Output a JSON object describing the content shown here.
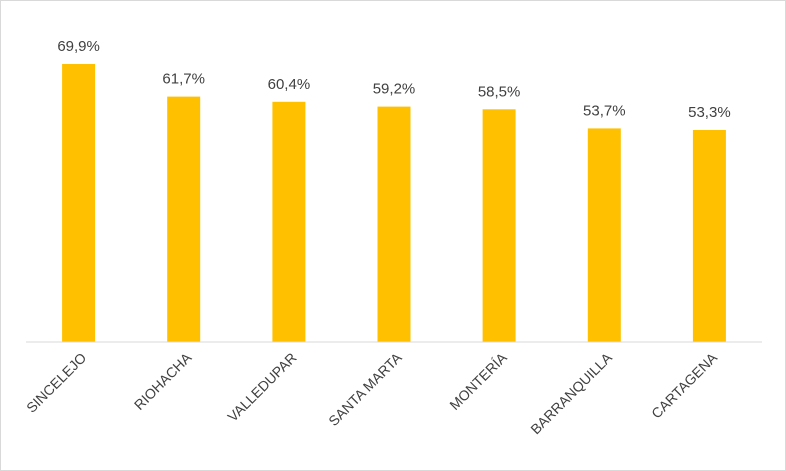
{
  "chart_data": {
    "type": "bar",
    "categories": [
      "SINCELEJO",
      "RIOHACHA",
      "VALLEDUPAR",
      "SANTA MARTA",
      "MONTERÍA",
      "BARRANQUILLA",
      "CARTAGENA"
    ],
    "values": [
      69.9,
      61.7,
      60.4,
      59.2,
      58.5,
      53.7,
      53.3
    ],
    "data_labels": [
      "69,9%",
      "61,7%",
      "60,4%",
      "59,2%",
      "58,5%",
      "53,7%",
      "53,3%"
    ],
    "unit": "%",
    "ylim": [
      0,
      69.9
    ],
    "bar_color": "#FFC000",
    "axis_color": "#D9D9D9",
    "label_color": "#404040",
    "grid": false,
    "legend": "none",
    "title": "",
    "xlabel": "",
    "ylabel": ""
  }
}
